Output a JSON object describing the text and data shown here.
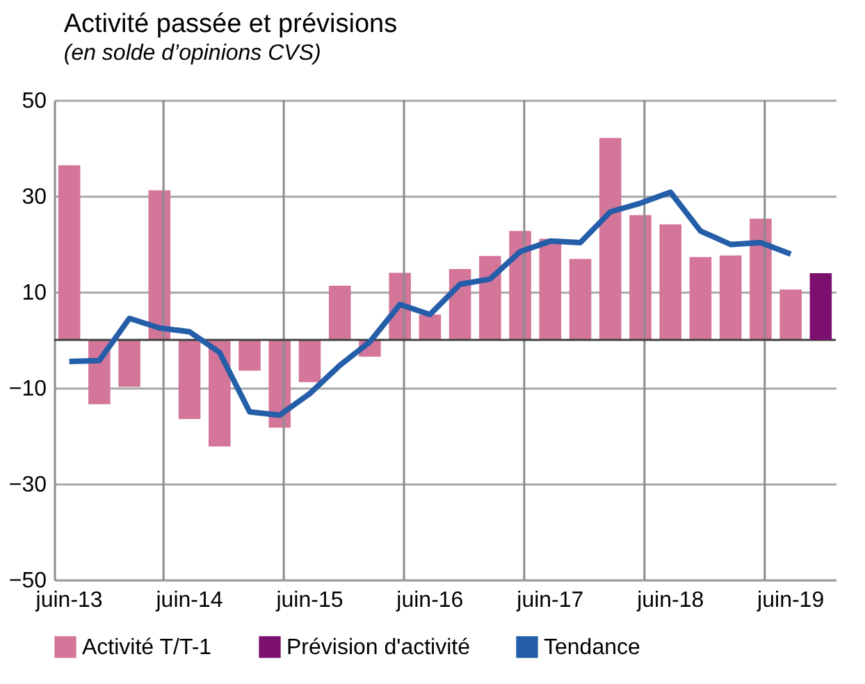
{
  "chart_data": {
    "type": "bar",
    "title": "Activité passée et prévisions",
    "subtitle": "(en solde d’opinions CVS)",
    "categories": [
      "juin-13",
      null,
      null,
      null,
      "juin-14",
      null,
      null,
      null,
      "juin-15",
      null,
      null,
      null,
      "juin-16",
      null,
      null,
      null,
      "juin-17",
      null,
      null,
      null,
      "juin-18",
      null,
      null,
      null,
      "juin-19",
      null
    ],
    "series": [
      {
        "name": "Activité T/T-1",
        "color": "#d4759a",
        "values": [
          36.4,
          -13.4,
          -9.8,
          31.2,
          -16.5,
          -22.2,
          -6.4,
          -18.3,
          -8.8,
          11.3,
          -3.5,
          14,
          5.3,
          14.8,
          17.5,
          22.7,
          21.1,
          16.9,
          42.1,
          26,
          24.1,
          17.3,
          17.6,
          25.3,
          10.5,
          null
        ]
      },
      {
        "name": "Prévision d'activité",
        "color": "#7b106e",
        "values": [
          null,
          null,
          null,
          null,
          null,
          null,
          null,
          null,
          null,
          null,
          null,
          null,
          null,
          null,
          null,
          null,
          null,
          null,
          null,
          null,
          null,
          null,
          null,
          null,
          null,
          13.9
        ]
      },
      {
        "name": "Tendance",
        "type": "line",
        "color": "#255ea8",
        "values": [
          -4.5,
          -4.3,
          4.5,
          2.5,
          1.7,
          -2.6,
          -15,
          -15.7,
          -11.2,
          -5.3,
          -0.4,
          7.4,
          5.3,
          11.6,
          12.7,
          18.4,
          20.6,
          20.3,
          26.7,
          28.5,
          30.8,
          22.7,
          19.9,
          20.3,
          17.9,
          null
        ]
      }
    ],
    "ylim": [
      -50,
      50
    ],
    "yticks": [
      -50,
      -30,
      -10,
      10,
      30,
      50
    ],
    "grid": true,
    "legend": "bottom",
    "marker": "none",
    "line_style": "solid"
  }
}
